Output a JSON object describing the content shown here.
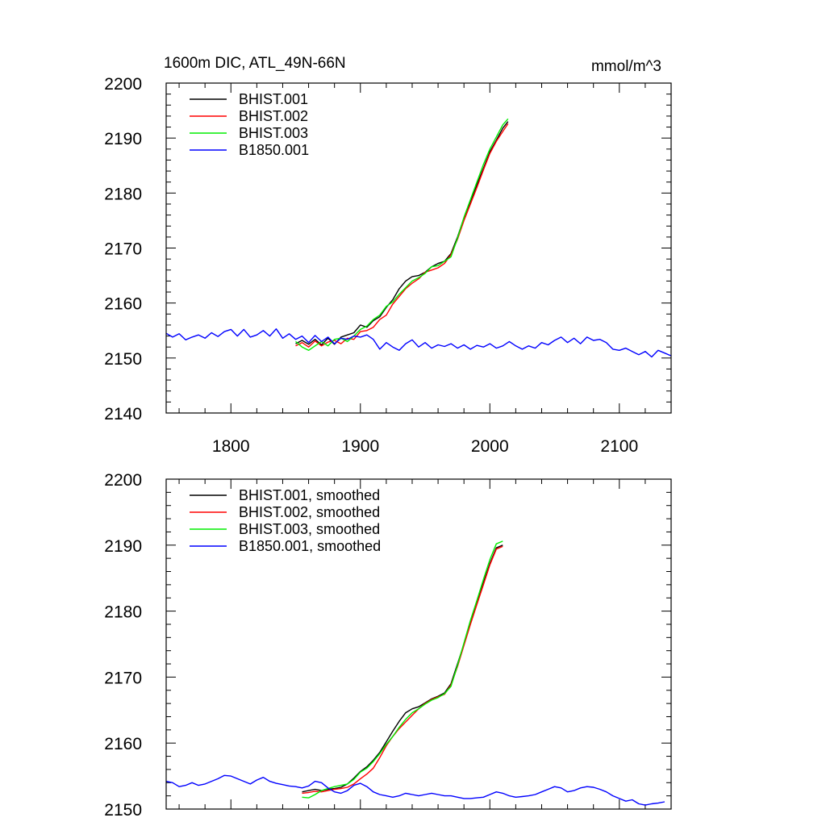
{
  "chart_data": [
    {
      "type": "line",
      "title": "1600m DIC, ATL_49N-66N",
      "units": "mmol/m^3",
      "xlim": [
        1750,
        2140
      ],
      "ylim": [
        2140,
        2200
      ],
      "x_ticks": [
        1800,
        1900,
        2000,
        2100
      ],
      "x_tick_labels": [
        "1800",
        "1900",
        "2000",
        "2100"
      ],
      "y_ticks": [
        2140,
        2150,
        2160,
        2170,
        2180,
        2190,
        2200
      ],
      "y_tick_labels": [
        "2140",
        "2150",
        "2160",
        "2170",
        "2180",
        "2190",
        "2200"
      ],
      "legend_position": "top-left",
      "series": [
        {
          "name": "BHIST.001",
          "color": "#000000",
          "x": [
            1850,
            1855,
            1860,
            1865,
            1870,
            1875,
            1880,
            1885,
            1890,
            1895,
            1900,
            1905,
            1910,
            1915,
            1920,
            1925,
            1930,
            1935,
            1940,
            1945,
            1950,
            1955,
            1960,
            1965,
            1970,
            1975,
            1980,
            1985,
            1990,
            1995,
            2000,
            2005,
            2010,
            2014
          ],
          "y": [
            2152.6,
            2153.2,
            2152.5,
            2153.4,
            2152.4,
            2153.6,
            2152.5,
            2153.8,
            2154.2,
            2154.6,
            2156.0,
            2155.6,
            2156.8,
            2157.5,
            2159.2,
            2160.6,
            2162.6,
            2164.0,
            2164.8,
            2165.0,
            2165.6,
            2166.6,
            2167.2,
            2167.6,
            2169.0,
            2172.0,
            2175.5,
            2178.5,
            2181.5,
            2184.5,
            2187.5,
            2189.6,
            2191.8,
            2193.0
          ]
        },
        {
          "name": "BHIST.002",
          "color": "#ff0000",
          "x": [
            1850,
            1855,
            1860,
            1865,
            1870,
            1875,
            1880,
            1885,
            1890,
            1895,
            1900,
            1905,
            1910,
            1915,
            1920,
            1925,
            1930,
            1935,
            1940,
            1945,
            1950,
            1955,
            1960,
            1965,
            1970,
            1975,
            1980,
            1985,
            1990,
            1995,
            2000,
            2005,
            2010,
            2014
          ],
          "y": [
            2152.2,
            2152.8,
            2152.0,
            2153.1,
            2152.2,
            2152.9,
            2153.2,
            2152.6,
            2153.6,
            2153.4,
            2154.8,
            2155.0,
            2155.6,
            2157.0,
            2157.8,
            2159.8,
            2161.2,
            2162.6,
            2163.6,
            2164.4,
            2165.6,
            2166.0,
            2166.4,
            2167.2,
            2168.8,
            2171.6,
            2175.0,
            2178.0,
            2181.0,
            2184.2,
            2187.2,
            2189.4,
            2191.2,
            2192.6
          ]
        },
        {
          "name": "BHIST.003",
          "color": "#00ee00",
          "x": [
            1850,
            1855,
            1860,
            1865,
            1870,
            1875,
            1880,
            1885,
            1890,
            1895,
            1900,
            1905,
            1910,
            1915,
            1920,
            1925,
            1930,
            1935,
            1940,
            1945,
            1950,
            1955,
            1960,
            1965,
            1970,
            1975,
            1980,
            1985,
            1990,
            1995,
            2000,
            2005,
            2010,
            2014
          ],
          "y": [
            2153.0,
            2152.0,
            2151.4,
            2152.2,
            2153.0,
            2152.2,
            2153.4,
            2153.6,
            2153.0,
            2154.0,
            2155.2,
            2155.8,
            2157.0,
            2157.8,
            2159.4,
            2160.2,
            2161.6,
            2162.8,
            2164.0,
            2164.6,
            2165.4,
            2166.6,
            2166.8,
            2167.6,
            2168.4,
            2171.8,
            2175.6,
            2178.8,
            2182.0,
            2185.2,
            2188.0,
            2190.2,
            2192.4,
            2193.5
          ]
        },
        {
          "name": "B1850.001",
          "color": "#0000ff",
          "x": [
            1750,
            1755,
            1760,
            1765,
            1770,
            1775,
            1780,
            1785,
            1790,
            1795,
            1800,
            1805,
            1810,
            1815,
            1820,
            1825,
            1830,
            1835,
            1840,
            1845,
            1850,
            1855,
            1860,
            1865,
            1870,
            1875,
            1880,
            1885,
            1890,
            1895,
            1900,
            1905,
            1910,
            1915,
            1920,
            1925,
            1930,
            1935,
            1940,
            1945,
            1950,
            1955,
            1960,
            1965,
            1970,
            1975,
            1980,
            1985,
            1990,
            1995,
            2000,
            2005,
            2010,
            2015,
            2020,
            2025,
            2030,
            2035,
            2040,
            2045,
            2050,
            2055,
            2060,
            2065,
            2070,
            2075,
            2080,
            2085,
            2090,
            2095,
            2100,
            2105,
            2110,
            2115,
            2120,
            2125,
            2130,
            2135,
            2140
          ],
          "y": [
            2154.5,
            2153.8,
            2154.4,
            2153.3,
            2153.8,
            2154.2,
            2153.6,
            2154.6,
            2153.9,
            2154.8,
            2155.2,
            2154.0,
            2155.2,
            2153.8,
            2154.2,
            2155.0,
            2154.0,
            2155.3,
            2153.6,
            2154.4,
            2153.4,
            2154.0,
            2152.8,
            2154.1,
            2153.0,
            2153.8,
            2152.6,
            2153.6,
            2153.4,
            2154.0,
            2153.8,
            2154.2,
            2153.4,
            2151.6,
            2152.8,
            2152.0,
            2151.4,
            2152.6,
            2153.3,
            2152.0,
            2152.8,
            2151.8,
            2152.4,
            2152.1,
            2152.6,
            2151.8,
            2152.4,
            2151.6,
            2152.3,
            2152.0,
            2152.6,
            2151.8,
            2152.2,
            2153.0,
            2152.2,
            2151.6,
            2152.2,
            2151.8,
            2152.8,
            2152.4,
            2153.2,
            2153.8,
            2152.8,
            2153.6,
            2152.6,
            2153.8,
            2153.2,
            2153.4,
            2152.8,
            2151.6,
            2151.4,
            2151.8,
            2151.2,
            2150.6,
            2151.2,
            2150.2,
            2151.4,
            2150.9,
            2150.4
          ]
        }
      ]
    },
    {
      "type": "line",
      "xlim": [
        1750,
        2140
      ],
      "ylim": [
        2150,
        2200
      ],
      "x_ticks": [
        1800,
        1900,
        2000,
        2100
      ],
      "y_ticks": [
        2150,
        2160,
        2170,
        2180,
        2190,
        2200
      ],
      "y_tick_labels": [
        "2150",
        "2160",
        "2170",
        "2180",
        "2190",
        "2200"
      ],
      "legend_position": "top-left",
      "series": [
        {
          "name": "BHIST.001, smoothed",
          "color": "#000000",
          "x": [
            1855,
            1860,
            1865,
            1870,
            1875,
            1880,
            1885,
            1890,
            1895,
            1900,
            1905,
            1910,
            1915,
            1920,
            1925,
            1930,
            1935,
            1940,
            1945,
            1950,
            1955,
            1960,
            1965,
            1970,
            1975,
            1980,
            1985,
            1990,
            1995,
            2000,
            2005,
            2010
          ],
          "y": [
            2152.6,
            2152.8,
            2153.0,
            2152.8,
            2153.0,
            2153.1,
            2153.3,
            2153.8,
            2154.7,
            2155.7,
            2156.4,
            2157.4,
            2158.6,
            2160.2,
            2161.8,
            2163.3,
            2164.6,
            2165.2,
            2165.5,
            2166.1,
            2166.7,
            2167.1,
            2167.6,
            2169.0,
            2172.0,
            2175.0,
            2178.2,
            2181.2,
            2184.3,
            2187.2,
            2189.6,
            2190.0
          ]
        },
        {
          "name": "BHIST.002, smoothed",
          "color": "#ff0000",
          "x": [
            1855,
            1860,
            1865,
            1870,
            1875,
            1880,
            1885,
            1890,
            1895,
            1900,
            1905,
            1910,
            1915,
            1920,
            1925,
            1930,
            1935,
            1940,
            1945,
            1950,
            1955,
            1960,
            1965,
            1970,
            1975,
            1980,
            1985,
            1990,
            1995,
            2000,
            2005,
            2010
          ],
          "y": [
            2152.4,
            2152.5,
            2152.7,
            2152.6,
            2152.8,
            2153.0,
            2153.1,
            2153.3,
            2153.8,
            2154.6,
            2155.3,
            2156.2,
            2157.8,
            2159.6,
            2161.0,
            2162.2,
            2163.2,
            2164.2,
            2165.2,
            2166.0,
            2166.6,
            2167.0,
            2167.4,
            2168.8,
            2171.6,
            2174.8,
            2178.0,
            2181.0,
            2184.0,
            2187.0,
            2189.4,
            2189.8
          ]
        },
        {
          "name": "BHIST.003, smoothed",
          "color": "#00ee00",
          "x": [
            1855,
            1860,
            1865,
            1870,
            1875,
            1880,
            1885,
            1890,
            1895,
            1900,
            1905,
            1910,
            1915,
            1920,
            1925,
            1930,
            1935,
            1940,
            1945,
            1950,
            1955,
            1960,
            1965,
            1970,
            1975,
            1980,
            1985,
            1990,
            1995,
            2000,
            2005,
            2010
          ],
          "y": [
            2151.8,
            2151.7,
            2152.2,
            2152.8,
            2153.1,
            2153.4,
            2153.6,
            2153.8,
            2154.5,
            2155.6,
            2156.2,
            2157.2,
            2158.4,
            2159.8,
            2161.0,
            2162.4,
            2163.6,
            2164.6,
            2165.2,
            2165.9,
            2166.5,
            2166.9,
            2167.5,
            2168.6,
            2171.8,
            2175.2,
            2178.6,
            2181.6,
            2184.8,
            2187.8,
            2190.2,
            2190.6
          ]
        },
        {
          "name": "B1850.001, smoothed",
          "color": "#0000ff",
          "x": [
            1750,
            1755,
            1760,
            1765,
            1770,
            1775,
            1780,
            1785,
            1790,
            1795,
            1800,
            1805,
            1810,
            1815,
            1820,
            1825,
            1830,
            1835,
            1840,
            1845,
            1850,
            1855,
            1860,
            1865,
            1870,
            1875,
            1880,
            1885,
            1890,
            1895,
            1900,
            1905,
            1910,
            1915,
            1920,
            1925,
            1930,
            1935,
            1940,
            1945,
            1950,
            1955,
            1960,
            1965,
            1970,
            1975,
            1980,
            1985,
            1990,
            1995,
            2000,
            2005,
            2010,
            2015,
            2020,
            2025,
            2030,
            2035,
            2040,
            2045,
            2050,
            2055,
            2060,
            2065,
            2070,
            2075,
            2080,
            2085,
            2090,
            2095,
            2100,
            2105,
            2110,
            2115,
            2120,
            2125,
            2130,
            2135
          ],
          "y": [
            2154.2,
            2154.0,
            2153.4,
            2153.6,
            2154.0,
            2153.6,
            2153.8,
            2154.2,
            2154.6,
            2155.1,
            2155.0,
            2154.6,
            2154.2,
            2153.8,
            2154.4,
            2154.8,
            2154.2,
            2153.9,
            2153.7,
            2153.5,
            2153.4,
            2153.2,
            2153.5,
            2154.2,
            2154.0,
            2153.2,
            2152.6,
            2152.4,
            2152.8,
            2153.6,
            2153.9,
            2153.4,
            2152.6,
            2152.2,
            2152.0,
            2151.8,
            2152.0,
            2152.4,
            2152.2,
            2152.0,
            2152.2,
            2152.4,
            2152.2,
            2152.0,
            2152.0,
            2151.8,
            2151.6,
            2151.6,
            2151.7,
            2151.8,
            2152.2,
            2152.6,
            2152.4,
            2152.0,
            2151.8,
            2151.9,
            2152.0,
            2152.2,
            2152.6,
            2153.0,
            2153.4,
            2153.2,
            2152.6,
            2152.8,
            2153.2,
            2153.4,
            2153.3,
            2153.0,
            2152.6,
            2152.0,
            2151.6,
            2151.2,
            2151.4,
            2150.8,
            2150.6,
            2150.8,
            2150.9,
            2151.1
          ]
        }
      ]
    }
  ]
}
